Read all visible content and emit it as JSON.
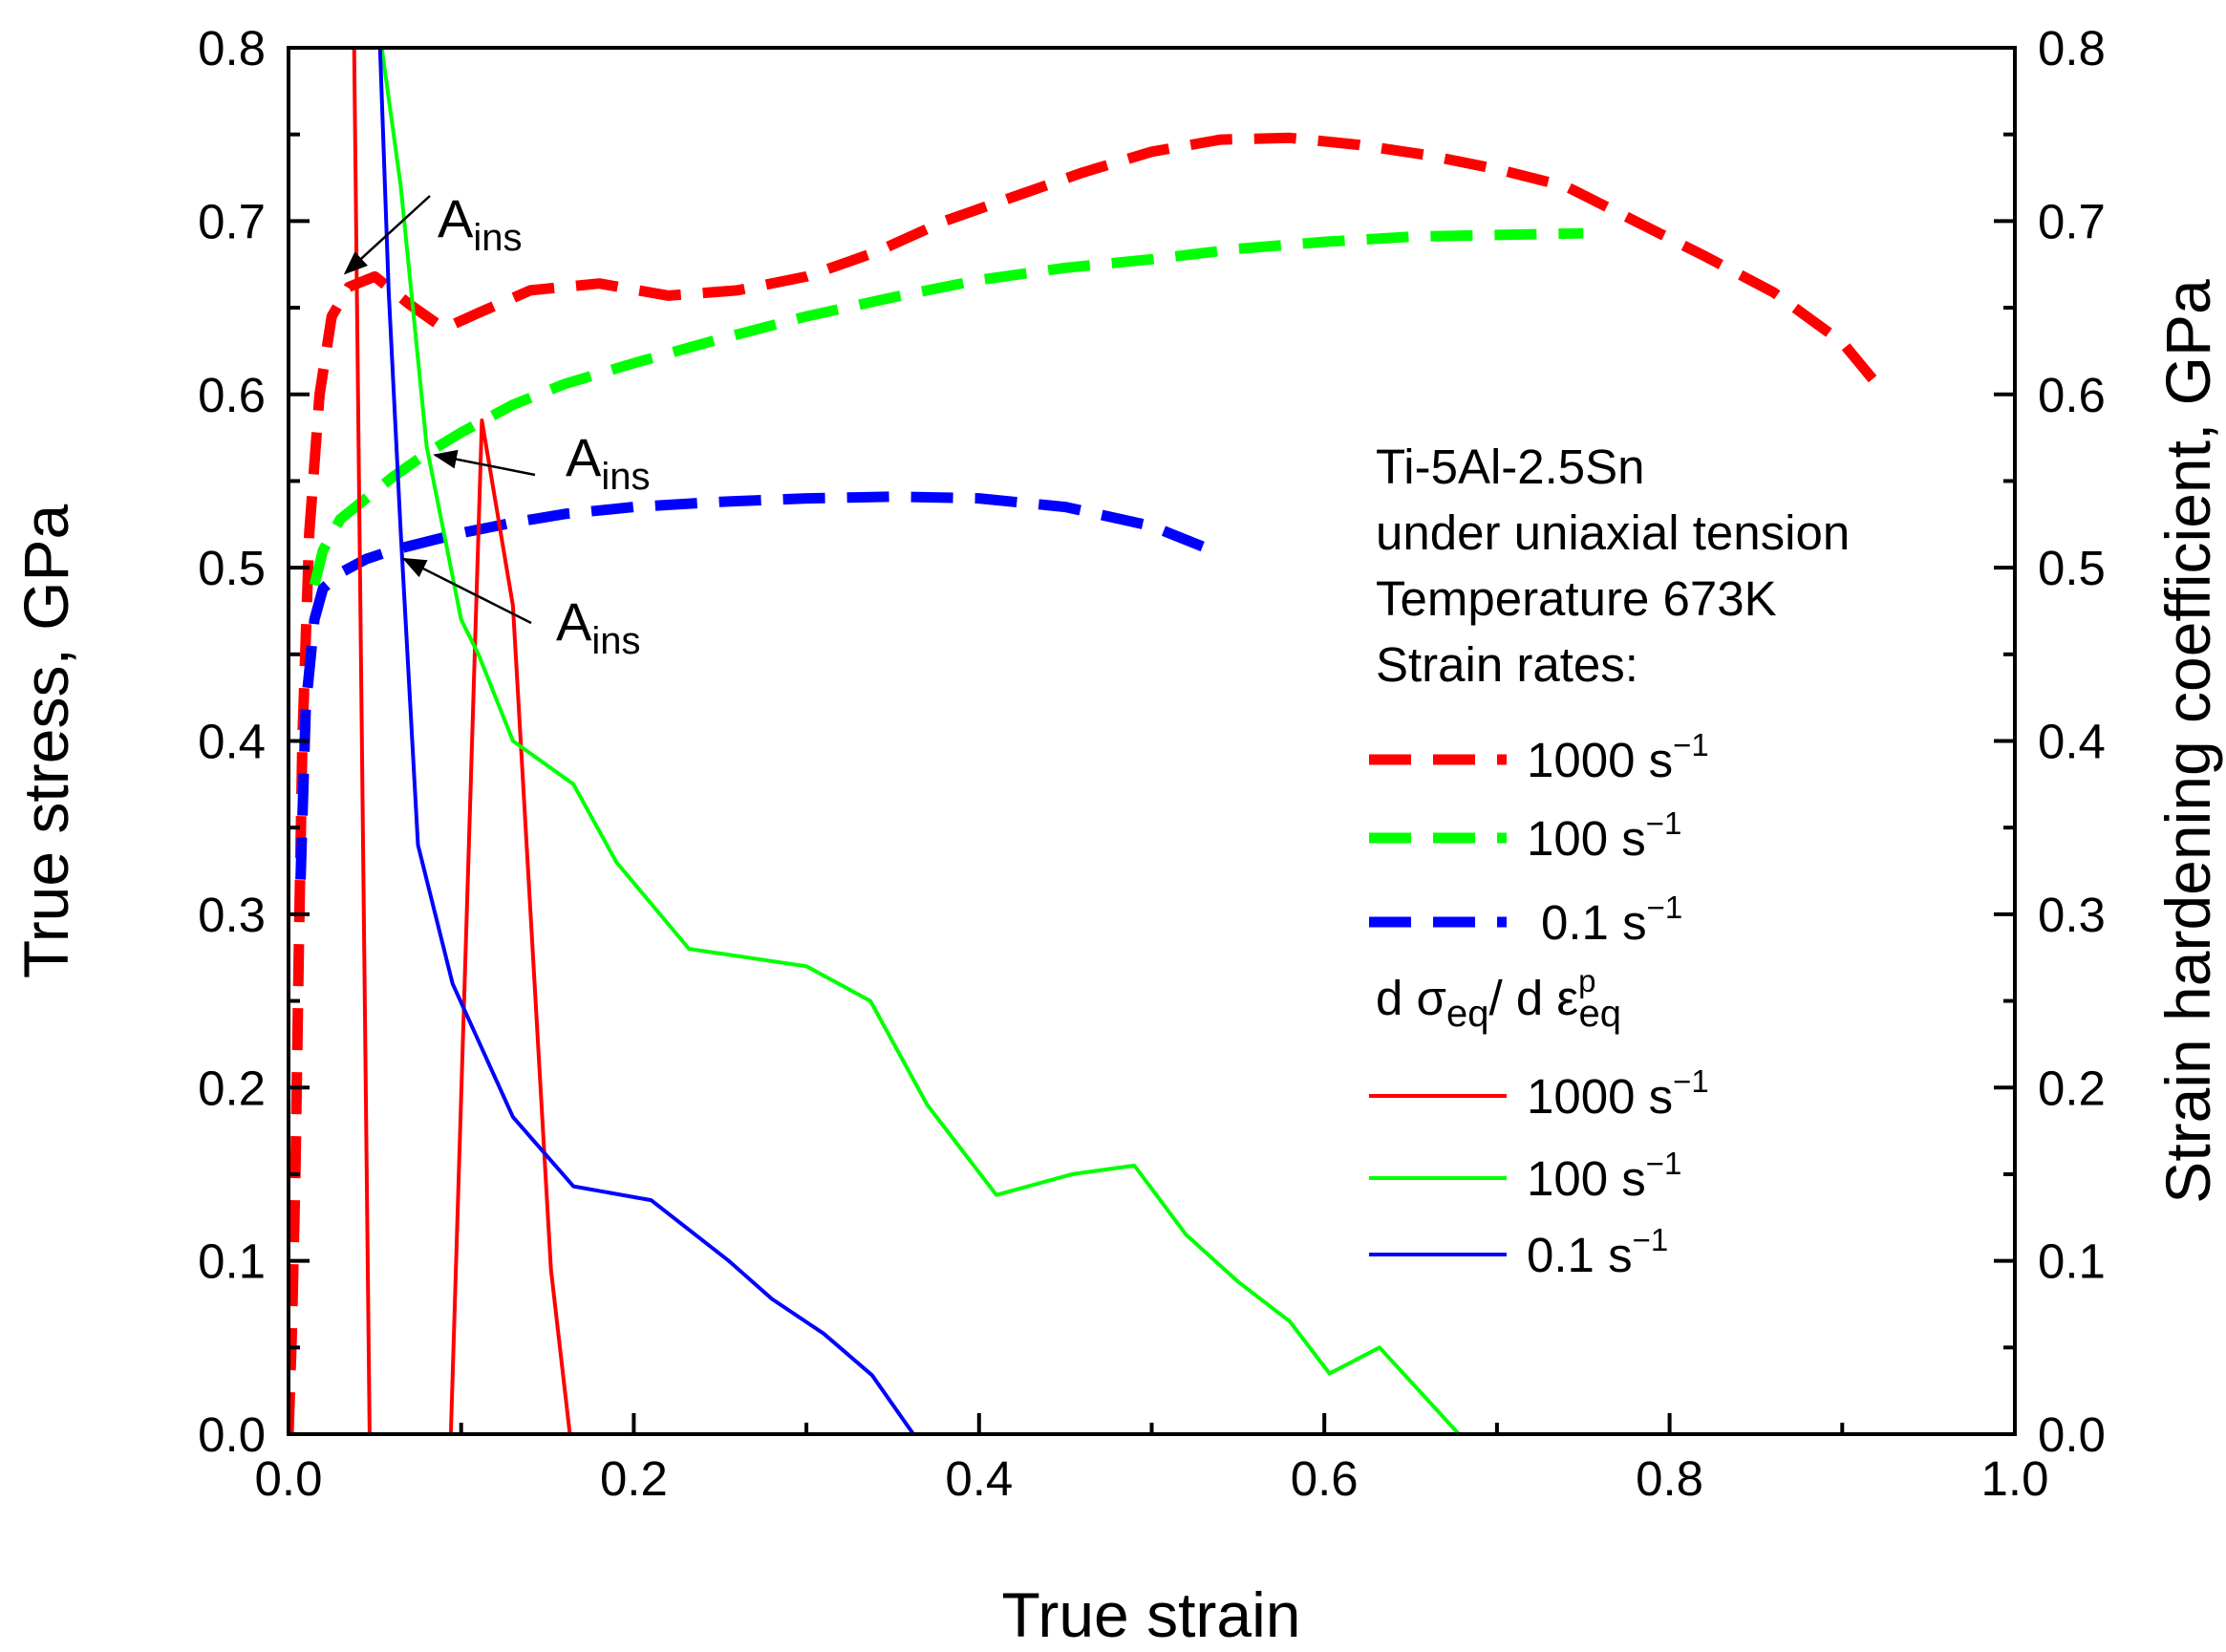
{
  "chart_data": {
    "type": "line",
    "title": "",
    "xlabel": "True strain",
    "ylabel": "True stress, GPa",
    "y2label": "Strain hardening coefficient, GPa",
    "xlim": [
      0.0,
      1.0
    ],
    "ylim": [
      0.0,
      0.8
    ],
    "y2lim": [
      0.0,
      0.8
    ],
    "grid": false,
    "xticks": [
      "0.0",
      "0.2",
      "0.4",
      "0.6",
      "0.8",
      "1.0"
    ],
    "yticks": [
      "0.0",
      "0.1",
      "0.2",
      "0.3",
      "0.4",
      "0.5",
      "0.6",
      "0.7",
      "0.8"
    ],
    "y2ticks": [
      "0.0",
      "0.1",
      "0.2",
      "0.3",
      "0.4",
      "0.5",
      "0.6",
      "0.7",
      "0.8"
    ],
    "legend": {
      "placement": "right",
      "header_lines": [
        "Ti-5Al-2.5Sn",
        "under uniaxial tension",
        "Temperature 673K",
        "Strain rates:"
      ],
      "hardening_header": {
        "base1": "d σ",
        "sub1": "eq",
        "mid": "/ d ε",
        "sup2": "p",
        "sub2": "eq"
      }
    },
    "series": [
      {
        "name": "stress-1000",
        "label_base": "1000 s",
        "label_sup": "−1",
        "kind": "stress",
        "style": "dashed",
        "color": "#ff0000",
        "x": [
          0.0,
          0.002,
          0.004,
          0.006,
          0.008,
          0.012,
          0.018,
          0.025,
          0.035,
          0.05,
          0.07,
          0.09,
          0.11,
          0.14,
          0.18,
          0.22,
          0.26,
          0.3,
          0.34,
          0.38,
          0.42,
          0.46,
          0.5,
          0.54,
          0.58,
          0.62,
          0.66,
          0.7,
          0.74,
          0.78,
          0.82,
          0.86,
          0.9,
          0.925
        ],
        "y": [
          0.0,
          0.06,
          0.15,
          0.28,
          0.4,
          0.52,
          0.6,
          0.645,
          0.662,
          0.668,
          0.652,
          0.638,
          0.647,
          0.66,
          0.664,
          0.657,
          0.66,
          0.668,
          0.682,
          0.7,
          0.714,
          0.728,
          0.74,
          0.747,
          0.748,
          0.744,
          0.738,
          0.73,
          0.72,
          0.7,
          0.68,
          0.659,
          0.63,
          0.6
        ]
      },
      {
        "name": "stress-100",
        "label_base": "100 s",
        "label_sup": "−1",
        "kind": "stress",
        "style": "dashed",
        "color": "#00ff00",
        "x": [
          0.015,
          0.02,
          0.03,
          0.045,
          0.06,
          0.08,
          0.1,
          0.13,
          0.16,
          0.2,
          0.25,
          0.3,
          0.35,
          0.4,
          0.45,
          0.5,
          0.55,
          0.6,
          0.65,
          0.7,
          0.75
        ],
        "y": [
          0.49,
          0.51,
          0.528,
          0.54,
          0.552,
          0.566,
          0.578,
          0.594,
          0.606,
          0.618,
          0.632,
          0.645,
          0.656,
          0.666,
          0.673,
          0.678,
          0.684,
          0.688,
          0.691,
          0.692,
          0.693
        ]
      },
      {
        "name": "stress-0.1",
        "label_base": "0.1 s",
        "label_sup": "−1",
        "kind": "stress",
        "style": "dashed",
        "color": "#0000ff",
        "x": [
          0.007,
          0.01,
          0.015,
          0.02,
          0.03,
          0.045,
          0.06,
          0.08,
          0.1,
          0.13,
          0.16,
          0.2,
          0.25,
          0.3,
          0.35,
          0.4,
          0.45,
          0.5,
          0.54
        ],
        "y": [
          0.32,
          0.42,
          0.47,
          0.488,
          0.497,
          0.505,
          0.51,
          0.515,
          0.52,
          0.526,
          0.531,
          0.535,
          0.538,
          0.54,
          0.541,
          0.54,
          0.535,
          0.524,
          0.508
        ]
      },
      {
        "name": "hardening-1000",
        "label_base": "1000 s",
        "label_sup": "−1",
        "kind": "hardening",
        "style": "solid",
        "color": "#ff0000",
        "x": [
          0.038,
          0.047,
          0.094,
          0.112,
          0.13,
          0.152,
          0.163
        ],
        "y": [
          0.8,
          0.0,
          0.0,
          0.585,
          0.478,
          0.095,
          0.0
        ]
      },
      {
        "name": "hardening-100",
        "label_base": "100 s",
        "label_sup": "−1",
        "kind": "hardening",
        "style": "solid",
        "color": "#00ff00",
        "x": [
          0.054,
          0.065,
          0.08,
          0.1,
          0.11,
          0.13,
          0.165,
          0.19,
          0.232,
          0.3,
          0.337,
          0.37,
          0.41,
          0.454,
          0.49,
          0.52,
          0.55,
          0.58,
          0.603,
          0.632,
          0.678
        ],
        "y": [
          0.8,
          0.72,
          0.57,
          0.47,
          0.45,
          0.4,
          0.375,
          0.33,
          0.28,
          0.27,
          0.25,
          0.19,
          0.138,
          0.15,
          0.155,
          0.115,
          0.088,
          0.065,
          0.035,
          0.05,
          0.0
        ]
      },
      {
        "name": "hardening-0.1",
        "label_base": "0.1 s",
        "label_sup": "−1",
        "kind": "hardening",
        "style": "solid",
        "color": "#0000ff",
        "x": [
          0.053,
          0.058,
          0.065,
          0.075,
          0.095,
          0.13,
          0.165,
          0.21,
          0.255,
          0.28,
          0.31,
          0.338,
          0.362
        ],
        "y": [
          0.8,
          0.66,
          0.52,
          0.34,
          0.26,
          0.183,
          0.143,
          0.135,
          0.1,
          0.078,
          0.058,
          0.034,
          0.0
        ]
      }
    ],
    "annotations": [
      {
        "base": "A",
        "sub": "ins",
        "series": "hardening-1000",
        "x": 0.033,
        "y": 0.67
      },
      {
        "base": "A",
        "sub": "ins",
        "series": "hardening-100",
        "x": 0.085,
        "y": 0.565
      },
      {
        "base": "A",
        "sub": "ins",
        "series": "hardening-0.1",
        "x": 0.067,
        "y": 0.505
      }
    ]
  }
}
